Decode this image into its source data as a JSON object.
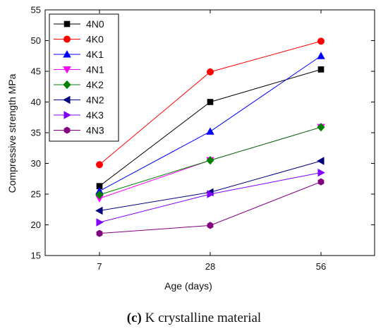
{
  "chart_data": {
    "type": "line",
    "categories": [
      "7",
      "28",
      "56"
    ],
    "xlabel": "Age (days)",
    "ylabel": "Compressive strength  MPa",
    "ylim": [
      15,
      55
    ],
    "yticks": [
      15,
      20,
      25,
      30,
      35,
      40,
      45,
      50,
      55
    ],
    "legend_position": "top-left",
    "series": [
      {
        "name": "4N0",
        "color": "#000000",
        "marker": "square",
        "values": [
          26.3,
          40.0,
          45.3
        ]
      },
      {
        "name": "4K0",
        "color": "#ff0000",
        "marker": "circle",
        "values": [
          29.8,
          44.9,
          49.9
        ]
      },
      {
        "name": "4K1",
        "color": "#0000ff",
        "marker": "triangle-up",
        "values": [
          25.5,
          35.2,
          47.5
        ]
      },
      {
        "name": "4N1",
        "color": "#ff00ff",
        "marker": "triangle-down",
        "values": [
          24.3,
          30.5,
          35.9
        ]
      },
      {
        "name": "4K2",
        "color": "#008000",
        "marker": "diamond",
        "values": [
          24.9,
          30.5,
          35.9
        ]
      },
      {
        "name": "4N2",
        "color": "#000080",
        "marker": "triangle-left",
        "values": [
          22.3,
          25.3,
          30.4
        ]
      },
      {
        "name": "4K3",
        "color": "#8000ff",
        "marker": "triangle-right",
        "values": [
          20.4,
          25.0,
          28.5
        ]
      },
      {
        "name": "4N3",
        "color": "#800080",
        "marker": "hexagon",
        "values": [
          18.6,
          19.9,
          27.0
        ]
      }
    ]
  },
  "caption": {
    "label": "(c)",
    "text": " K crystalline material"
  }
}
